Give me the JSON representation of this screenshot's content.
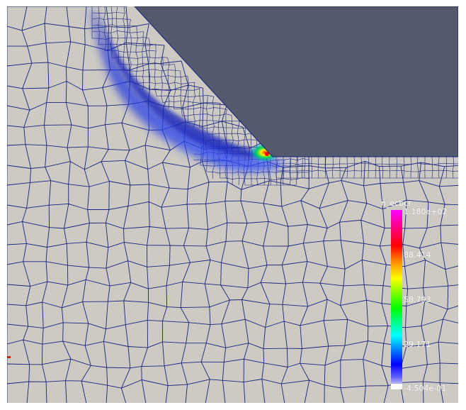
{
  "view": {
    "background_color": "#cdcac3",
    "tool_color": "#545a6d",
    "mesh_color": "#1a237e"
  },
  "legend": {
    "title": "n_ecbcr",
    "tick_max": "1.180e+02",
    "tick_1": "88.414",
    "tick_2": "58.793",
    "tick_3": "29.171",
    "tick_min": "-4.504e-01"
  }
}
